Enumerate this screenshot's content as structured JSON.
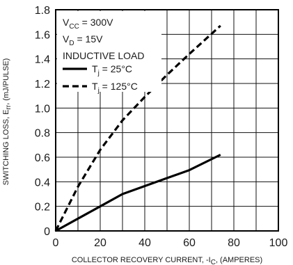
{
  "chart_data": {
    "type": "line",
    "title": "",
    "xlabel": "COLLECTOR RECOVERY CURRENT, -I_C, (AMPERES)",
    "ylabel": "SWITCHING LOSS, E_rr, (mJ/PULSE)",
    "xlabel_parts": {
      "main": "COLLECTOR RECOVERY CURRENT, -I",
      "sub": "C",
      "tail": ", (AMPERES)"
    },
    "ylabel_parts": {
      "main": "SWITCHING LOSS, E",
      "sub": "rr",
      "tail": ", (mJ/PULSE)"
    },
    "xlim": [
      0,
      100
    ],
    "ylim": [
      0,
      1.8
    ],
    "x_ticks": [
      0,
      20,
      40,
      60,
      80,
      100
    ],
    "x_tick_labels": [
      "0",
      "20",
      "40",
      "60",
      "80",
      "100"
    ],
    "y_ticks": [
      0,
      0.2,
      0.4,
      0.6,
      0.8,
      1.0,
      1.2,
      1.4,
      1.6,
      1.8
    ],
    "y_tick_labels": [
      "0",
      "0.2",
      "0.4",
      "0.6",
      "0.8",
      "1.0",
      "1.2",
      "1.4",
      "1.6",
      "1.8"
    ],
    "minor_x_step": 10,
    "minor_y_step": 0.2,
    "grid": true,
    "conditions": [
      {
        "main": "V",
        "sub": "CC",
        "tail": " = 300V"
      },
      {
        "main": "V",
        "sub": "D",
        "tail": " = 15V"
      },
      {
        "main": "INDUCTIVE LOAD",
        "sub": "",
        "tail": ""
      }
    ],
    "series": [
      {
        "name": "T_j = 25°C",
        "legend_parts": {
          "main": "T",
          "sub": "j",
          "tail": " = 25°C"
        },
        "style": "solid",
        "color": "#000000",
        "x": [
          0,
          10,
          20,
          30,
          40,
          50,
          60,
          74
        ],
        "y": [
          0,
          0.1,
          0.2,
          0.3,
          0.365,
          0.43,
          0.495,
          0.62
        ]
      },
      {
        "name": "T_j = 125°C",
        "legend_parts": {
          "main": "T",
          "sub": "j",
          "tail": " = 125°C"
        },
        "style": "dashed",
        "color": "#000000",
        "x": [
          0,
          10,
          20,
          30,
          40,
          50,
          60,
          74
        ],
        "y": [
          0,
          0.36,
          0.66,
          0.9,
          1.09,
          1.27,
          1.44,
          1.67
        ]
      }
    ]
  }
}
